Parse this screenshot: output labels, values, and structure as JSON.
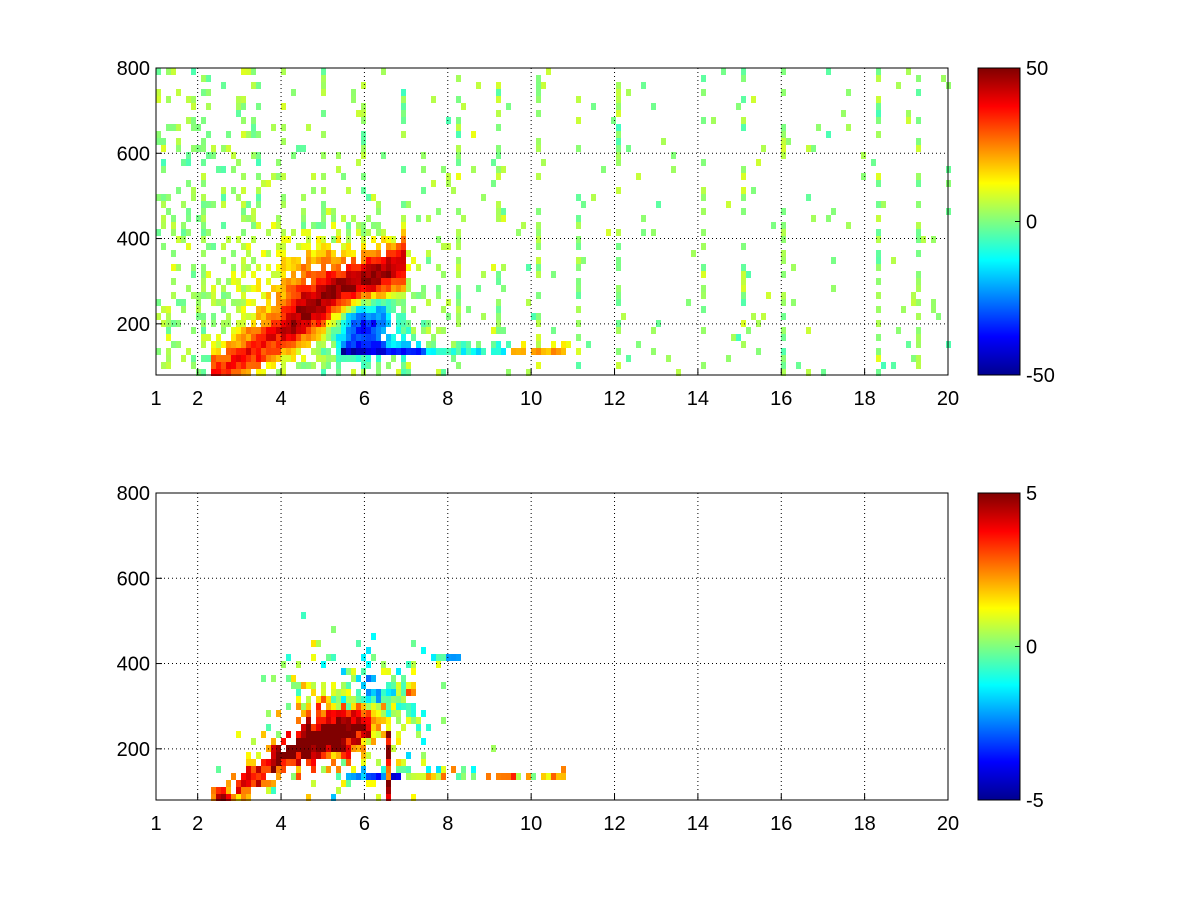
{
  "chart_data": [
    {
      "type": "heatmap",
      "title": "",
      "xlabel": "",
      "ylabel": "",
      "xlim": [
        1,
        20
      ],
      "ylim": [
        80,
        800
      ],
      "x_ticks": [
        1,
        2,
        4,
        6,
        8,
        10,
        12,
        14,
        16,
        18,
        20
      ],
      "x_tick_labels": [
        "1",
        "2",
        "4",
        "6",
        "8",
        "10",
        "12",
        "14",
        "16",
        "18",
        "20"
      ],
      "y_ticks": [
        200,
        400,
        600,
        800
      ],
      "y_tick_labels": [
        "200",
        "400",
        "600",
        "800"
      ],
      "grid": true,
      "colormap": "jet",
      "colorbar": {
        "min": -50,
        "max": 50,
        "ticks": [
          -50,
          0,
          50
        ],
        "tick_labels": [
          "-50",
          "0",
          "50"
        ]
      },
      "features": [
        {
          "name": "ridge-main",
          "x": [
            2.6,
            3.0,
            3.6,
            4.2,
            4.8,
            5.4,
            6.0,
            6.6
          ],
          "y": [
            95,
            110,
            140,
            180,
            230,
            270,
            300,
            320
          ],
          "value": 38
        },
        {
          "name": "band-140",
          "x_range": [
            5.4,
            11.0
          ],
          "y": 140,
          "value_left": -45,
          "value_right": 25
        },
        {
          "name": "blue-cluster",
          "x": 5.8,
          "y": 220,
          "value": -35
        },
        {
          "name": "diffuse-cloud",
          "x_range": [
            2.0,
            9.5
          ],
          "y_range": [
            80,
            450
          ]
        },
        {
          "name": "sparse-noise",
          "x_range": [
            1.0,
            20.0
          ],
          "y_range": [
            80,
            800
          ]
        }
      ]
    },
    {
      "type": "heatmap",
      "title": "",
      "xlabel": "",
      "ylabel": "",
      "xlim": [
        1,
        20
      ],
      "ylim": [
        80,
        800
      ],
      "x_ticks": [
        1,
        2,
        4,
        6,
        8,
        10,
        12,
        14,
        16,
        18,
        20
      ],
      "x_tick_labels": [
        "1",
        "2",
        "4",
        "6",
        "8",
        "10",
        "12",
        "14",
        "16",
        "18",
        "20"
      ],
      "y_ticks": [
        200,
        400,
        600,
        800
      ],
      "y_tick_labels": [
        "200",
        "400",
        "600",
        "800"
      ],
      "grid": true,
      "colormap": "jet",
      "colorbar": {
        "min": -5,
        "max": 5,
        "ticks": [
          -5,
          0,
          5
        ],
        "tick_labels": [
          "-5",
          "0",
          "5"
        ]
      },
      "features": [
        {
          "name": "ridge-main",
          "x": [
            2.6,
            3.2,
            3.8,
            4.4,
            5.0,
            5.6,
            6.2,
            6.8
          ],
          "y": [
            90,
            110,
            150,
            190,
            230,
            260,
            290,
            320
          ],
          "value": 4
        },
        {
          "name": "band-140",
          "x_range": [
            5.5,
            10.9
          ],
          "y": 140,
          "value_left": -3,
          "value_right": 2
        },
        {
          "name": "column-6.6",
          "x": 6.6,
          "y_range": [
            80,
            240
          ],
          "value": 4
        },
        {
          "name": "patch-410",
          "x_range": [
            7.6,
            8.3
          ],
          "y": 412,
          "value": -1.5
        },
        {
          "name": "cluster-main",
          "x_range": [
            4.2,
            7.4
          ],
          "y_range": [
            150,
            420
          ]
        }
      ]
    }
  ]
}
